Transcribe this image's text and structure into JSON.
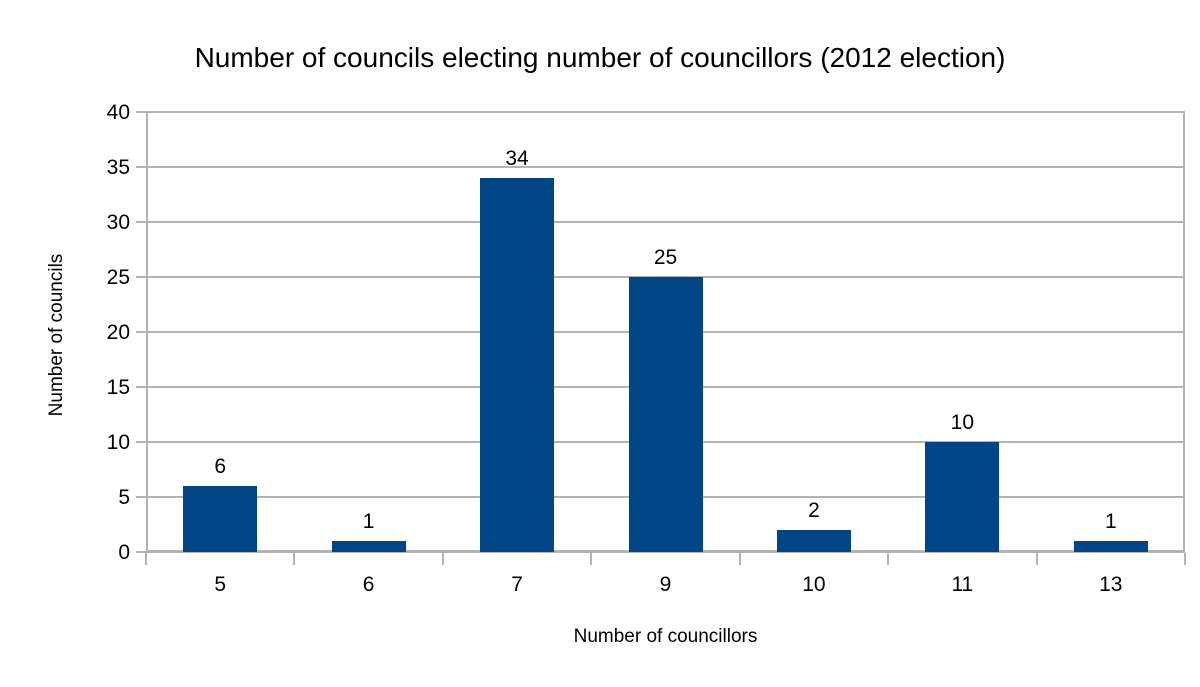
{
  "chart_data": {
    "type": "bar",
    "title": "Number of councils electing number of councillors (2012 election)",
    "xlabel": "Number of councillors",
    "ylabel": "Number of councils",
    "categories": [
      "5",
      "6",
      "7",
      "9",
      "10",
      "11",
      "13"
    ],
    "values": [
      6,
      1,
      34,
      25,
      2,
      10,
      1
    ],
    "data_labels_shown": true,
    "ylim": [
      0,
      40
    ],
    "yticks": [
      0,
      5,
      10,
      15,
      20,
      25,
      30,
      35,
      40
    ],
    "grid": "horizontal",
    "legend": "none",
    "colors": {
      "bar": "#004586",
      "grid": "#b3b3b3",
      "axis": "#b3b3b3",
      "text": "#000000",
      "background": "#ffffff"
    }
  }
}
